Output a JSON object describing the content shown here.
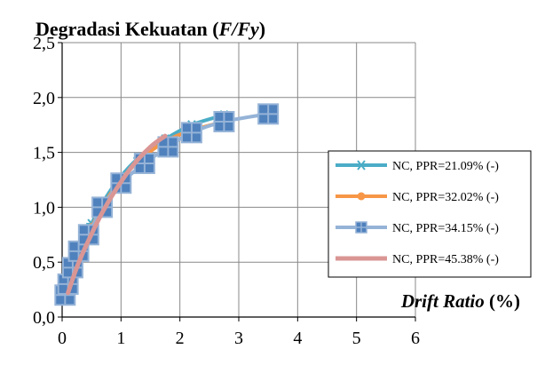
{
  "chart_data": {
    "type": "line",
    "title_main": "Degradasi Kekuatan (",
    "title_italic": "F/Fy",
    "title_end": ")",
    "xlabel_italic": "Drift Ratio",
    "xlabel_rest": " (%)",
    "ylabel": "",
    "xlim": [
      0,
      6
    ],
    "ylim": [
      0,
      2.5
    ],
    "x_ticks": [
      "0",
      "1",
      "2",
      "3",
      "4",
      "5",
      "6"
    ],
    "y_ticks": [
      "0,0",
      "0,5",
      "1,0",
      "1,5",
      "2,0",
      "2,5"
    ],
    "grid": true,
    "legend_position": "right",
    "series": [
      {
        "name": "NC, PPR=21.09% (-)",
        "color": "#4bacc6",
        "marker": "star",
        "x": [
          0.05,
          0.12,
          0.22,
          0.32,
          0.5,
          0.7,
          0.95,
          1.3,
          1.75,
          2.2,
          2.75
        ],
        "y": [
          0.18,
          0.35,
          0.5,
          0.65,
          0.85,
          1.05,
          1.25,
          1.45,
          1.62,
          1.75,
          1.84
        ]
      },
      {
        "name": "NC, PPR=32.02% (-)",
        "color": "#f79646",
        "marker": "circle",
        "x": [
          0.05,
          0.12,
          0.22,
          0.32,
          0.5,
          0.7,
          0.95,
          1.3,
          1.75,
          2.2,
          2.75
        ],
        "y": [
          0.17,
          0.33,
          0.48,
          0.62,
          0.82,
          1.02,
          1.22,
          1.42,
          1.6,
          1.7,
          1.78
        ]
      },
      {
        "name": "NC, PPR=34.15% (-)",
        "color": "#95b3d7",
        "marker": "square",
        "marker_fill": "#4f81bd",
        "x": [
          0.05,
          0.1,
          0.18,
          0.28,
          0.45,
          0.68,
          1.0,
          1.4,
          1.8,
          2.2,
          2.75,
          3.5
        ],
        "y": [
          0.2,
          0.3,
          0.45,
          0.6,
          0.75,
          1.0,
          1.22,
          1.4,
          1.55,
          1.68,
          1.78,
          1.85
        ]
      },
      {
        "name": "NC, PPR=45.38% (-)",
        "color": "#d99694",
        "marker": "none",
        "x": [
          0.1,
          0.2,
          0.3,
          0.45,
          0.65,
          0.9,
          1.2,
          1.5,
          1.75
        ],
        "y": [
          0.22,
          0.38,
          0.52,
          0.7,
          0.92,
          1.15,
          1.38,
          1.55,
          1.65
        ]
      }
    ]
  }
}
